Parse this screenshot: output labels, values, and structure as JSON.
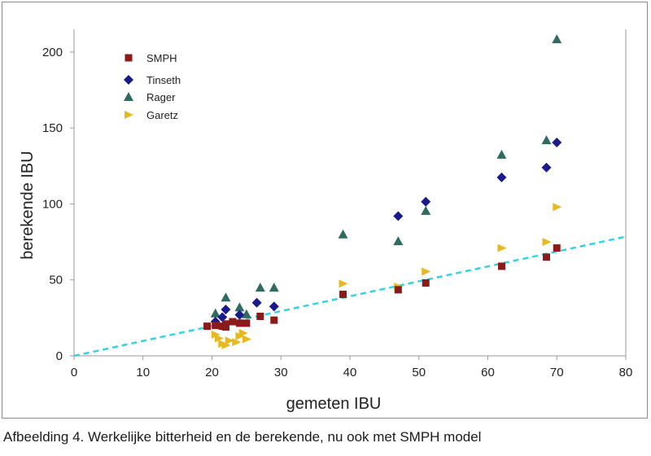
{
  "caption": "Afbeelding 4.  Werkelijke bitterheid en de berekende, nu ook met SMPH model",
  "chart_data": {
    "type": "scatter",
    "xlabel": "gemeten IBU",
    "ylabel": "berekende IBU",
    "xlim": [
      0,
      80
    ],
    "ylim": [
      0,
      215
    ],
    "xticks": [
      0,
      10,
      20,
      30,
      40,
      50,
      60,
      70,
      80
    ],
    "yticks": [
      0,
      50,
      100,
      150,
      200
    ],
    "grid": false,
    "legend_position": "top-left",
    "reference_line": {
      "style": "dashed",
      "color": "#33d4e0",
      "points": [
        [
          0,
          0
        ],
        [
          80,
          78.5
        ]
      ]
    },
    "series": [
      {
        "name": "SMPH",
        "marker": "square",
        "color": "#8b1a1a",
        "points": [
          [
            19.3,
            19.5
          ],
          [
            20.5,
            20
          ],
          [
            21.5,
            19.5
          ],
          [
            22,
            19
          ],
          [
            22,
            21
          ],
          [
            23,
            22.5
          ],
          [
            24,
            21.5
          ],
          [
            25,
            21.5
          ],
          [
            27,
            26
          ],
          [
            29,
            23.5
          ],
          [
            39,
            40.5
          ],
          [
            47,
            43.5
          ],
          [
            51,
            48
          ],
          [
            62,
            59
          ],
          [
            68.5,
            65
          ],
          [
            70,
            71
          ]
        ]
      },
      {
        "name": "Tinseth",
        "marker": "diamond",
        "color": "#1a1a8b",
        "points": [
          [
            20.5,
            22.5
          ],
          [
            21.5,
            25.5
          ],
          [
            22,
            30.5
          ],
          [
            24,
            27
          ],
          [
            26.5,
            35
          ],
          [
            29,
            32.5
          ],
          [
            47,
            92
          ],
          [
            51,
            101.5
          ],
          [
            62,
            117.5
          ],
          [
            68.5,
            124
          ],
          [
            70,
            140.5
          ]
        ]
      },
      {
        "name": "Rager",
        "marker": "triangle",
        "color": "#2f6b5f",
        "points": [
          [
            20.5,
            28
          ],
          [
            22,
            38.5
          ],
          [
            24,
            32
          ],
          [
            25,
            27.5
          ],
          [
            27,
            45
          ],
          [
            29,
            45
          ],
          [
            39,
            80
          ],
          [
            47,
            75.5
          ],
          [
            51,
            95.5
          ],
          [
            62,
            132.5
          ],
          [
            68.5,
            142
          ],
          [
            70,
            208.5
          ]
        ]
      },
      {
        "name": "Garetz",
        "marker": "arrow-right",
        "color": "#e8b820",
        "points": [
          [
            20.5,
            14
          ],
          [
            21,
            11.5
          ],
          [
            21.5,
            8
          ],
          [
            22,
            7
          ],
          [
            22.5,
            10
          ],
          [
            23.5,
            9
          ],
          [
            24,
            13
          ],
          [
            24.5,
            15
          ],
          [
            25,
            11
          ],
          [
            39,
            47.5
          ],
          [
            47,
            45.5
          ],
          [
            51,
            55.5
          ],
          [
            62,
            71
          ],
          [
            68.5,
            75
          ],
          [
            70,
            98
          ]
        ]
      }
    ]
  }
}
